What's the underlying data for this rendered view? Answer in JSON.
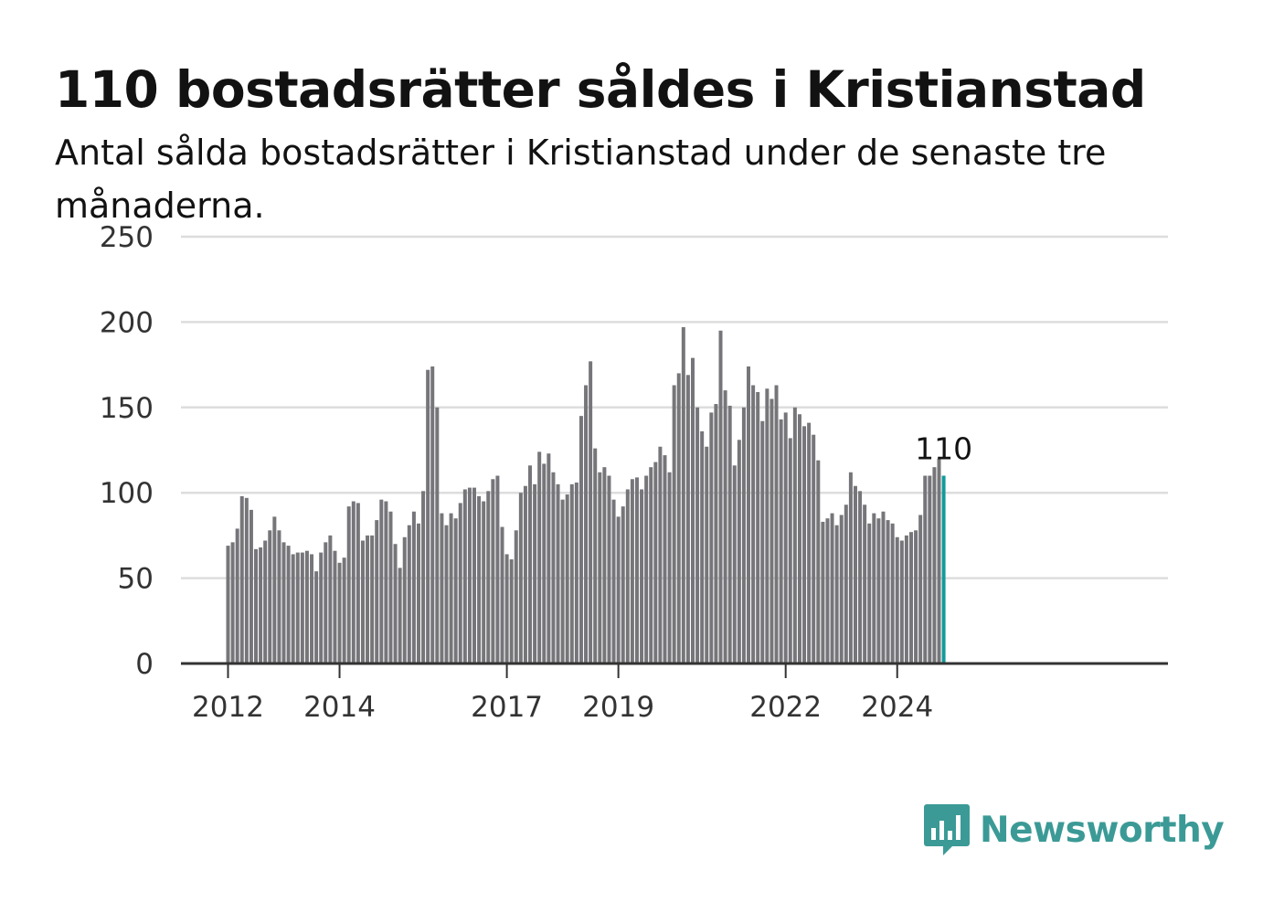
{
  "header": {
    "title": "110 bostadsrätter såldes i Kristianstad",
    "subtitle": "Antal sålda bostadsrätter i Kristianstad under de senaste tre månaderna."
  },
  "brand": {
    "name": "Newsworthy",
    "color": "#3b9a96",
    "icon": "newsworthy-logo-icon"
  },
  "colors": {
    "bar": "#76767a",
    "highlight": "#14999a",
    "grid": "#dddddd",
    "axis": "#333333"
  },
  "chart_data": {
    "type": "bar",
    "title": "110 bostadsrätter såldes i Kristianstad",
    "subtitle": "Antal sålda bostadsrätter i Kristianstad under de senaste tre månaderna.",
    "xlabel": "",
    "ylabel": "",
    "start": "2012-01",
    "frequency": "monthly",
    "ylim": [
      0,
      250
    ],
    "yticks": [
      0,
      50,
      100,
      150,
      200,
      250
    ],
    "xticks": [
      "2012",
      "2014",
      "2017",
      "2019",
      "2022",
      "2024"
    ],
    "grid": true,
    "highlight": {
      "label": "110",
      "value": 110,
      "index": "last"
    },
    "values": [
      69,
      71,
      79,
      98,
      97,
      90,
      67,
      68,
      72,
      78,
      86,
      78,
      71,
      69,
      64,
      65,
      65,
      66,
      64,
      54,
      65,
      71,
      75,
      66,
      59,
      62,
      92,
      95,
      94,
      72,
      75,
      75,
      84,
      96,
      95,
      89,
      70,
      56,
      74,
      81,
      89,
      82,
      101,
      172,
      174,
      150,
      88,
      81,
      88,
      85,
      94,
      102,
      103,
      103,
      98,
      95,
      101,
      108,
      110,
      80,
      64,
      61,
      78,
      100,
      104,
      116,
      105,
      124,
      117,
      123,
      112,
      105,
      96,
      99,
      105,
      106,
      145,
      163,
      177,
      126,
      112,
      115,
      110,
      96,
      86,
      92,
      102,
      108,
      109,
      102,
      110,
      115,
      118,
      127,
      122,
      112,
      163,
      170,
      197,
      169,
      179,
      150,
      136,
      127,
      147,
      152,
      195,
      160,
      151,
      116,
      131,
      150,
      174,
      163,
      159,
      142,
      161,
      155,
      163,
      143,
      147,
      132,
      150,
      146,
      139,
      141,
      134,
      119,
      83,
      85,
      88,
      81,
      87,
      93,
      112,
      104,
      101,
      93,
      82,
      88,
      85,
      89,
      84,
      82,
      74,
      72,
      75,
      77,
      78,
      87,
      110,
      110,
      115,
      120,
      110
    ]
  }
}
